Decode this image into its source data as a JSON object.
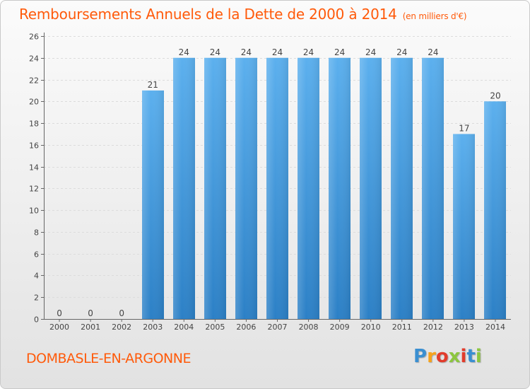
{
  "chart_data": {
    "type": "bar",
    "title": "Remboursements Annuels de la Dette de 2000 à 2014",
    "subtitle": "(en milliers d'€)",
    "categories": [
      "2000",
      "2001",
      "2002",
      "2003",
      "2004",
      "2005",
      "2006",
      "2007",
      "2008",
      "2009",
      "2010",
      "2011",
      "2012",
      "2013",
      "2014"
    ],
    "values": [
      0,
      0,
      0,
      21,
      24,
      24,
      24,
      24,
      24,
      24,
      24,
      24,
      24,
      17,
      20
    ],
    "ylim": [
      0,
      26
    ],
    "yticks": [
      0,
      2,
      4,
      6,
      8,
      10,
      12,
      14,
      16,
      18,
      20,
      22,
      24,
      26
    ],
    "grid": true,
    "bar_color": "#4a9fdf"
  },
  "footer": {
    "commune": "DOMBASLE-EN-ARGONNE",
    "logo": "Proxiti"
  }
}
